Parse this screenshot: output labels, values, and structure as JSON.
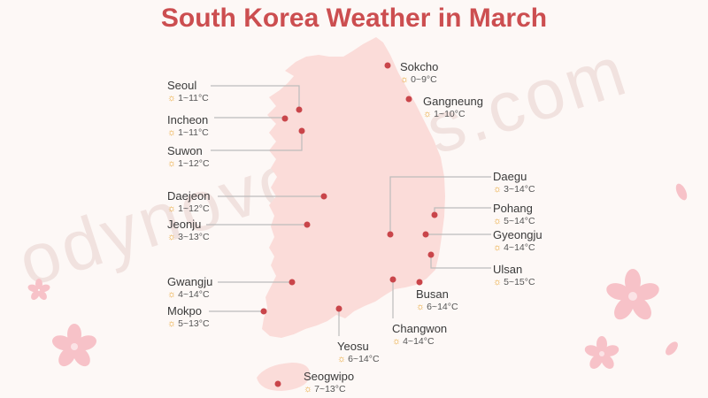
{
  "title": "South Korea Weather in March",
  "watermark": "odynovotours.com",
  "colors": {
    "title": "#cc4e50",
    "map_fill": "#fbdcd9",
    "marker": "#c9454a",
    "leader_line": "#bcbcbc",
    "sun_icon": "#e8a22c",
    "blossom": "#f7c2c8"
  },
  "cities": [
    {
      "name": "Sokcho",
      "temp": "0~9°C"
    },
    {
      "name": "Seoul",
      "temp": "1~11°C"
    },
    {
      "name": "Gangneung",
      "temp": "1~10°C"
    },
    {
      "name": "Incheon",
      "temp": "1~11°C"
    },
    {
      "name": "Suwon",
      "temp": "1~12°C"
    },
    {
      "name": "Daegu",
      "temp": "3~14°C"
    },
    {
      "name": "Daejeon",
      "temp": "1~12°C"
    },
    {
      "name": "Pohang",
      "temp": "5~14°C"
    },
    {
      "name": "Jeonju",
      "temp": "3~13°C"
    },
    {
      "name": "Gyeongju",
      "temp": "4~14°C"
    },
    {
      "name": "Ulsan",
      "temp": "5~15°C"
    },
    {
      "name": "Gwangju",
      "temp": "4~14°C"
    },
    {
      "name": "Busan",
      "temp": "6~14°C"
    },
    {
      "name": "Mokpo",
      "temp": "5~13°C"
    },
    {
      "name": "Changwon",
      "temp": "4~14°C"
    },
    {
      "name": "Yeosu",
      "temp": "6~14°C"
    },
    {
      "name": "Seogwipo",
      "temp": "7~13°C"
    }
  ]
}
